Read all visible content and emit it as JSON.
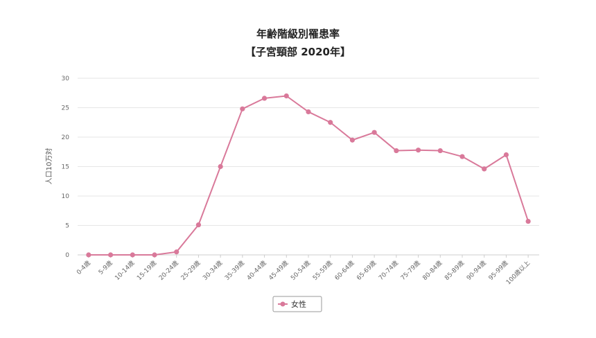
{
  "chart_data": {
    "type": "line",
    "title": "年齢階級別罹患率",
    "subtitle": "【子宮頸部 2020年】",
    "ylabel": "人口10万対",
    "xlabel": "",
    "ylim": [
      0,
      30
    ],
    "yticks": [
      0,
      5,
      10,
      15,
      20,
      25,
      30
    ],
    "grid": true,
    "legend_position": "bottom-center",
    "categories": [
      "0-4歳",
      "5-9歳",
      "10-14歳",
      "15-19歳",
      "20-24歳",
      "25-29歳",
      "30-34歳",
      "35-39歳",
      "40-44歳",
      "45-49歳",
      "50-54歳",
      "55-59歳",
      "60-64歳",
      "65-69歳",
      "70-74歳",
      "75-79歳",
      "80-84歳",
      "85-89歳",
      "90-94歳",
      "95-99歳",
      "100歳以上"
    ],
    "series": [
      {
        "name": "女性",
        "color": "#d9799a",
        "values": [
          0.0,
          0.0,
          0.0,
          0.0,
          0.5,
          5.1,
          15.0,
          24.8,
          26.6,
          27.0,
          24.3,
          22.5,
          19.5,
          20.8,
          17.7,
          17.8,
          17.7,
          16.7,
          14.6,
          17.0,
          5.7
        ]
      }
    ]
  }
}
